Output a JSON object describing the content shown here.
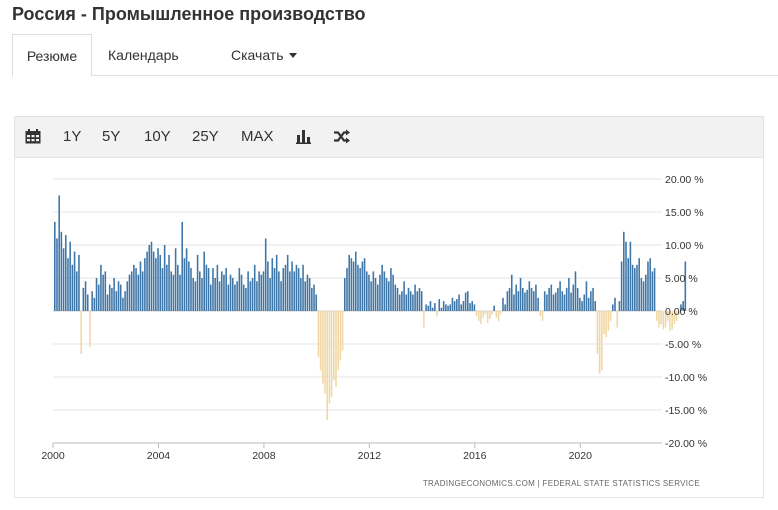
{
  "page": {
    "title": "Россия - Промышленное производство"
  },
  "tabs": [
    {
      "label": "Резюме"
    },
    {
      "label": "Календарь"
    },
    {
      "label": "Скачать"
    }
  ],
  "toolbar": {
    "ranges": [
      "1Y",
      "5Y",
      "10Y",
      "25Y",
      "MAX"
    ],
    "icons": [
      "calendar-icon",
      "bar-chart-icon",
      "shuffle-icon"
    ]
  },
  "colors": {
    "positive": "#3f76a8",
    "negative": "#f0d8a6",
    "grid": "#e6e6e6"
  },
  "chart_data": {
    "type": "bar",
    "source": "TRADINGECONOMICS.COM  |  FEDERAL STATE STATISTICS SERVICE",
    "y_tick_labels": [
      "20.00 %",
      "15.00 %",
      "10.00 %",
      "5.00 %",
      "0.00 %",
      "-5.00 %",
      "-10.00 %",
      "-15.00 %",
      "-20.00 %"
    ],
    "y_ticks": [
      20,
      15,
      10,
      5,
      0,
      -5,
      -10,
      -15,
      -20
    ],
    "ylim": [
      -20,
      20
    ],
    "x_tick_labels": [
      "2000",
      "2004",
      "2008",
      "2012",
      "2016",
      "2020"
    ],
    "x_ticks": [
      2000,
      2004,
      2008,
      2012,
      2016,
      2020
    ],
    "xlim": [
      2000,
      2023.1
    ],
    "grid": "horizontal",
    "series": [
      {
        "x_start": "2000-01",
        "frequency": "monthly",
        "values": [
          13.5,
          11.0,
          17.5,
          12.0,
          9.5,
          11.5,
          8.0,
          10.5,
          7.0,
          9.0,
          6.0,
          8.5,
          -6.5,
          3.5,
          4.5,
          2.5,
          -5.5,
          3.0,
          2.0,
          5.0,
          4.0,
          7.0,
          5.5,
          6.0,
          2.5,
          4.0,
          3.5,
          5.0,
          3.0,
          4.5,
          4.0,
          2.0,
          3.0,
          4.5,
          5.5,
          6.0,
          7.0,
          6.5,
          5.5,
          7.5,
          6.0,
          8.0,
          9.0,
          10.0,
          10.5,
          9.0,
          8.0,
          9.5,
          8.5,
          6.5,
          10.0,
          7.0,
          8.5,
          6.0,
          5.5,
          9.5,
          7.0,
          5.5,
          13.5,
          8.0,
          9.5,
          7.5,
          6.5,
          5.0,
          4.5,
          8.5,
          6.0,
          5.0,
          9.0,
          7.0,
          6.5,
          4.0,
          6.5,
          5.0,
          7.0,
          4.5,
          6.0,
          5.5,
          6.5,
          4.0,
          5.5,
          5.0,
          4.0,
          4.5,
          6.5,
          5.5,
          4.0,
          3.5,
          6.0,
          4.5,
          5.0,
          7.0,
          4.5,
          6.0,
          5.5,
          6.0,
          11.0,
          7.5,
          5.0,
          8.0,
          6.5,
          8.5,
          6.0,
          4.5,
          6.5,
          7.0,
          8.5,
          6.0,
          7.5,
          6.0,
          7.0,
          6.5,
          5.0,
          7.0,
          4.5,
          5.5,
          5.0,
          3.5,
          4.0,
          2.5,
          -7.0,
          -9.0,
          -11.0,
          -12.5,
          -16.5,
          -14.0,
          -13.0,
          -10.5,
          -11.5,
          -9.0,
          -7.5,
          -6.0,
          5.0,
          6.5,
          8.5,
          8.0,
          7.5,
          9.0,
          7.0,
          6.5,
          7.5,
          8.0,
          6.0,
          5.5,
          4.5,
          6.0,
          5.0,
          4.0,
          5.5,
          7.0,
          6.0,
          5.0,
          4.5,
          6.5,
          5.5,
          4.0,
          3.5,
          2.5,
          3.0,
          4.5,
          2.5,
          3.5,
          3.0,
          2.5,
          4.0,
          3.0,
          3.5,
          3.0,
          -2.5,
          1.0,
          0.8,
          1.5,
          0.5,
          1.2,
          -0.8,
          1.8,
          0.5,
          1.5,
          1.0,
          0.8,
          1.0,
          2.0,
          1.5,
          1.8,
          2.5,
          1.0,
          1.5,
          2.8,
          3.0,
          1.2,
          1.5,
          1.0,
          -0.8,
          -1.5,
          -2.0,
          -1.0,
          -0.5,
          -1.8,
          -1.2,
          -0.6,
          0.8,
          -1.0,
          -1.5,
          -0.5,
          2.0,
          1.0,
          3.0,
          3.5,
          5.5,
          2.5,
          4.0,
          3.0,
          5.0,
          3.5,
          2.8,
          3.2,
          4.5,
          3.5,
          3.0,
          4.0,
          2.0,
          -0.8,
          -1.5,
          3.0,
          2.5,
          3.5,
          4.0,
          2.5,
          2.8,
          3.5,
          4.5,
          3.0,
          2.5,
          3.5,
          5.0,
          2.8,
          4.0,
          6.0,
          3.5,
          2.0,
          1.5,
          2.5,
          4.5,
          2.0,
          3.0,
          3.5,
          1.5,
          -6.5,
          -9.5,
          -9.0,
          -3.5,
          -4.0,
          -3.0,
          -1.5,
          1.0,
          2.0,
          -2.5,
          1.5,
          7.5,
          12.0,
          10.5,
          8.0,
          10.5,
          7.0,
          6.5,
          7.0,
          8.0,
          5.0,
          4.5,
          5.5,
          7.5,
          8.0,
          6.0,
          6.5,
          -1.5,
          -2.5,
          -2.0,
          -2.8,
          -2.5,
          -1.5,
          -3.0,
          -2.8,
          -2.0,
          -1.5,
          -0.5,
          1.0,
          1.5,
          7.5
        ]
      }
    ]
  }
}
